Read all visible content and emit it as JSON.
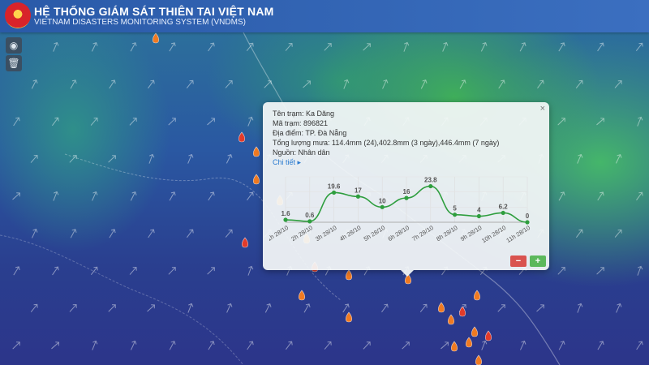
{
  "header": {
    "title": "HỆ THỐNG GIÁM SÁT THIÊN TAI VIỆT NAM",
    "subtitle": "VIETNAM DISASTERS MONITORING SYSTEM (VNDMS)"
  },
  "controls": [
    {
      "icon": "globe-icon",
      "glyph": "◉"
    },
    {
      "icon": "trash-icon",
      "glyph": "🗑"
    }
  ],
  "popup": {
    "close_glyph": "×",
    "station_name": "Tên trạm: Ka Dăng",
    "station_code": "Mã trạm: 896821",
    "location": "Địa điểm: TP. Đà Nẵng",
    "rainfall": "Tổng lượng mưa: 114.4mm (24),402.8mm (3 ngày),446.4mm (7 ngày)",
    "source": "Nguồn: Nhân dân",
    "details_link": "Chi tiết ▸",
    "zoom_out": "−",
    "zoom_in": "+"
  },
  "chart_data": {
    "type": "line",
    "categories": [
      "1h 28/10",
      "2h 28/10",
      "3h 28/10",
      "4h 28/10",
      "5h 28/10",
      "6h 28/10",
      "7h 28/10",
      "8h 28/10",
      "9h 28/10",
      "10h 28/10",
      "11h 28/10"
    ],
    "values": [
      1.6,
      0.6,
      19.6,
      17,
      10,
      16,
      23.8,
      5,
      4,
      6.2,
      0
    ],
    "series_color": "#2e9e3e",
    "ylim": [
      0,
      30
    ],
    "grid": true
  },
  "map": {
    "raindrop_color": "#f07a22",
    "raindrop_red": "#e23b2a"
  }
}
